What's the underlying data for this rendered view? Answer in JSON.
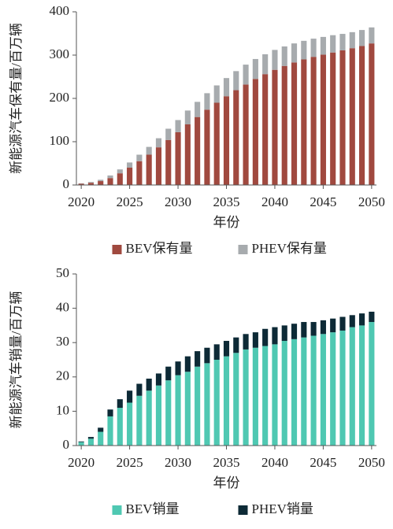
{
  "chart_data": [
    {
      "type": "bar",
      "stacked": true,
      "ylabel": "新能源汽车保有量/百万辆",
      "xlabel": "年份",
      "x": [
        2020,
        2021,
        2022,
        2023,
        2024,
        2025,
        2026,
        2027,
        2028,
        2029,
        2030,
        2031,
        2032,
        2033,
        2034,
        2035,
        2036,
        2037,
        2038,
        2039,
        2040,
        2041,
        2042,
        2043,
        2044,
        2045,
        2046,
        2047,
        2048,
        2049,
        2050
      ],
      "xlim": [
        2019.5,
        2050.5
      ],
      "xticks": [
        2020,
        2025,
        2030,
        2035,
        2040,
        2045,
        2050
      ],
      "ylim": [
        0,
        400
      ],
      "yticks": [
        0,
        100,
        200,
        300,
        400
      ],
      "legend": "bottom",
      "series": [
        {
          "name": "BEV保有量",
          "color": "#a0493f",
          "values": [
            3,
            5,
            9,
            16,
            27,
            40,
            55,
            70,
            87,
            104,
            122,
            140,
            157,
            174,
            190,
            205,
            219,
            232,
            245,
            256,
            266,
            275,
            283,
            290,
            296,
            301,
            306,
            311,
            316,
            321,
            327
          ]
        },
        {
          "name": "PHEV保有量",
          "color": "#a7abae",
          "values": [
            1,
            2,
            3,
            6,
            9,
            12,
            15,
            18,
            21,
            26,
            28,
            32,
            35,
            38,
            40,
            42,
            44,
            46,
            46,
            46,
            46,
            45,
            44,
            43,
            42,
            41,
            40,
            38,
            37,
            37,
            37
          ]
        }
      ]
    },
    {
      "type": "bar",
      "stacked": true,
      "ylabel": "新能源汽车销量/百万辆",
      "xlabel": "年份",
      "x": [
        2020,
        2021,
        2022,
        2023,
        2024,
        2025,
        2026,
        2027,
        2028,
        2029,
        2030,
        2031,
        2032,
        2033,
        2034,
        2035,
        2036,
        2037,
        2038,
        2039,
        2040,
        2041,
        2042,
        2043,
        2044,
        2045,
        2046,
        2047,
        2048,
        2049,
        2050
      ],
      "xlim": [
        2019.5,
        2050.5
      ],
      "xticks": [
        2020,
        2025,
        2030,
        2035,
        2040,
        2045,
        2050
      ],
      "ylim": [
        0,
        50
      ],
      "yticks": [
        0,
        10,
        20,
        30,
        40,
        50
      ],
      "legend": "bottom",
      "series": [
        {
          "name": "BEV销量",
          "color": "#4fc8b2",
          "values": [
            1,
            2,
            4,
            8.5,
            11,
            12.5,
            14.5,
            16,
            17.5,
            19,
            20.5,
            21.5,
            23,
            24,
            25,
            26,
            27,
            28,
            28.5,
            29,
            29.5,
            30.5,
            31,
            31.5,
            32,
            32.5,
            33,
            33.5,
            34.5,
            35,
            36
          ]
        },
        {
          "name": "PHEV销量",
          "color": "#0d2a36",
          "values": [
            0.2,
            0.5,
            1.2,
            2,
            2.5,
            3.5,
            3.5,
            3.5,
            3.5,
            4,
            4,
            4.5,
            4.5,
            4.5,
            4.5,
            4.5,
            4.5,
            4.5,
            4.5,
            5,
            5,
            4.5,
            4.5,
            4.5,
            4,
            4,
            4,
            4,
            3.5,
            3.5,
            3
          ]
        }
      ]
    }
  ]
}
